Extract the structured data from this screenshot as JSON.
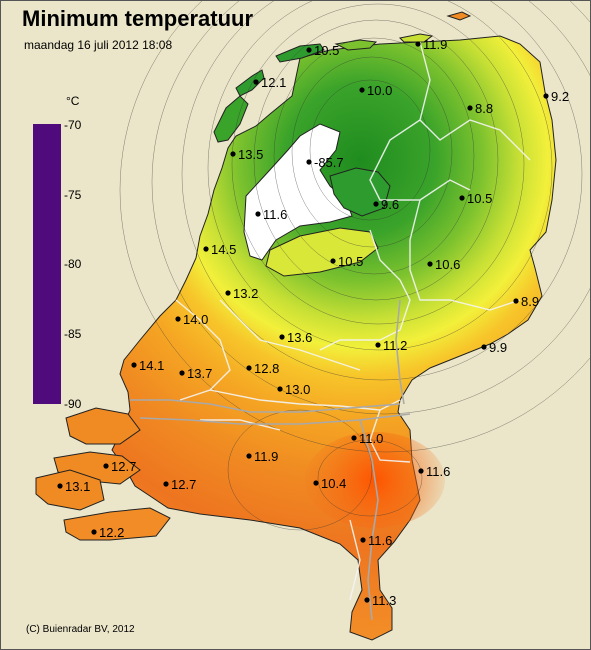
{
  "title": "Minimum temperatuur",
  "subtitle": "maandag 16 juli 2012 18:08",
  "legend": {
    "unit": "°C",
    "ticks": [
      "-70",
      "-75",
      "-80",
      "-85",
      "-90"
    ],
    "bar_color": "#4f0a7c"
  },
  "copyright": "(C) Buienradar BV, 2012",
  "colors": {
    "background": "#ebe6c9",
    "water": "#ffffff",
    "warm": "#f07820",
    "hot": "#ff5a00",
    "mild": "#f5a623",
    "yellow": "#f2f03a",
    "cold_green": "#2e9b2e"
  },
  "stations": [
    {
      "label": "10.5"
    },
    {
      "label": "11.9"
    },
    {
      "label": "12.1"
    },
    {
      "label": "10.0"
    },
    {
      "label": "9.2"
    },
    {
      "label": "8.8"
    },
    {
      "label": "13.5"
    },
    {
      "label": "-85.7"
    },
    {
      "label": "9.6"
    },
    {
      "label": "10.5"
    },
    {
      "label": "11.6"
    },
    {
      "label": "14.5"
    },
    {
      "label": "10.5"
    },
    {
      "label": "10.6"
    },
    {
      "label": "13.2"
    },
    {
      "label": "8.9"
    },
    {
      "label": "14.0"
    },
    {
      "label": "13.6"
    },
    {
      "label": "11.2"
    },
    {
      "label": "9.9"
    },
    {
      "label": "14.1"
    },
    {
      "label": "13.7"
    },
    {
      "label": "12.8"
    },
    {
      "label": "13.0"
    },
    {
      "label": "11.0"
    },
    {
      "label": "11.9"
    },
    {
      "label": "11.6"
    },
    {
      "label": "12.7"
    },
    {
      "label": "12.7"
    },
    {
      "label": "10.4"
    },
    {
      "label": "13.1"
    },
    {
      "label": "12.2"
    },
    {
      "label": "11.6"
    },
    {
      "label": "11.3"
    }
  ]
}
